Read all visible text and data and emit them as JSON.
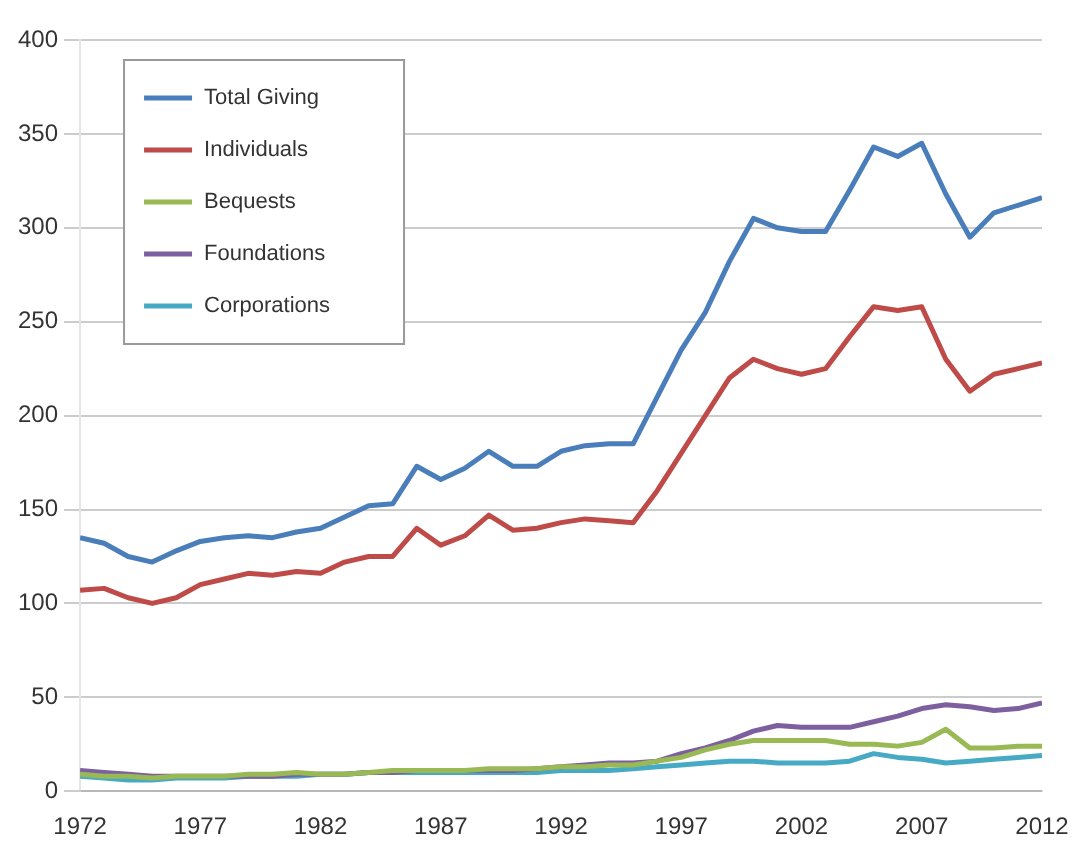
{
  "chart_data": {
    "type": "line",
    "x": [
      1972,
      1973,
      1974,
      1975,
      1976,
      1977,
      1978,
      1979,
      1980,
      1981,
      1982,
      1983,
      1984,
      1985,
      1986,
      1987,
      1988,
      1989,
      1990,
      1991,
      1992,
      1993,
      1994,
      1995,
      1996,
      1997,
      1998,
      1999,
      2000,
      2001,
      2002,
      2003,
      2004,
      2005,
      2006,
      2007,
      2008,
      2009,
      2010,
      2011,
      2012
    ],
    "series": [
      {
        "name": "Total Giving",
        "color": "#4a7ebb",
        "values": [
          135,
          132,
          125,
          122,
          128,
          133,
          135,
          136,
          135,
          138,
          140,
          146,
          152,
          153,
          173,
          166,
          172,
          181,
          173,
          173,
          181,
          184,
          185,
          185,
          210,
          235,
          255,
          282,
          305,
          300,
          298,
          298,
          320,
          343,
          338,
          345,
          318,
          295,
          308,
          312,
          316
        ]
      },
      {
        "name": "Individuals",
        "color": "#be4b48",
        "values": [
          107,
          108,
          103,
          100,
          103,
          110,
          113,
          116,
          115,
          117,
          116,
          122,
          125,
          125,
          140,
          131,
          136,
          147,
          139,
          140,
          143,
          145,
          144,
          143,
          160,
          180,
          200,
          220,
          230,
          225,
          222,
          225,
          242,
          258,
          256,
          258,
          230,
          213,
          222,
          225,
          228
        ]
      },
      {
        "name": "Bequests",
        "color": "#98b954",
        "values": [
          9,
          8,
          8,
          7,
          8,
          8,
          8,
          9,
          9,
          10,
          9,
          9,
          10,
          11,
          11,
          11,
          11,
          12,
          12,
          12,
          13,
          13,
          14,
          14,
          16,
          18,
          22,
          25,
          27,
          27,
          27,
          27,
          25,
          25,
          24,
          26,
          33,
          23,
          23,
          24,
          24
        ]
      },
      {
        "name": "Foundations",
        "color": "#7d5fa0",
        "values": [
          11,
          10,
          9,
          8,
          8,
          8,
          8,
          8,
          8,
          9,
          9,
          9,
          10,
          10,
          11,
          11,
          11,
          11,
          11,
          12,
          13,
          14,
          15,
          15,
          16,
          20,
          23,
          27,
          32,
          35,
          34,
          34,
          34,
          37,
          40,
          44,
          46,
          45,
          43,
          44,
          47
        ]
      },
      {
        "name": "Corporations",
        "color": "#46aac5",
        "values": [
          8,
          7,
          6,
          6,
          7,
          7,
          7,
          8,
          8,
          8,
          9,
          9,
          10,
          10,
          10,
          10,
          10,
          10,
          10,
          10,
          11,
          11,
          11,
          12,
          13,
          14,
          15,
          16,
          16,
          15,
          15,
          15,
          16,
          20,
          18,
          17,
          15,
          16,
          17,
          18,
          19
        ]
      }
    ],
    "xlim": [
      1972,
      2012
    ],
    "xticks": [
      1972,
      1977,
      1982,
      1987,
      1992,
      1997,
      2002,
      2007,
      2012
    ],
    "ylim": [
      0,
      400
    ],
    "yticks": [
      0,
      50,
      100,
      150,
      200,
      250,
      300,
      350,
      400
    ],
    "grid": "y",
    "legend": "top left",
    "marker": "none",
    "line_style": "solid"
  }
}
